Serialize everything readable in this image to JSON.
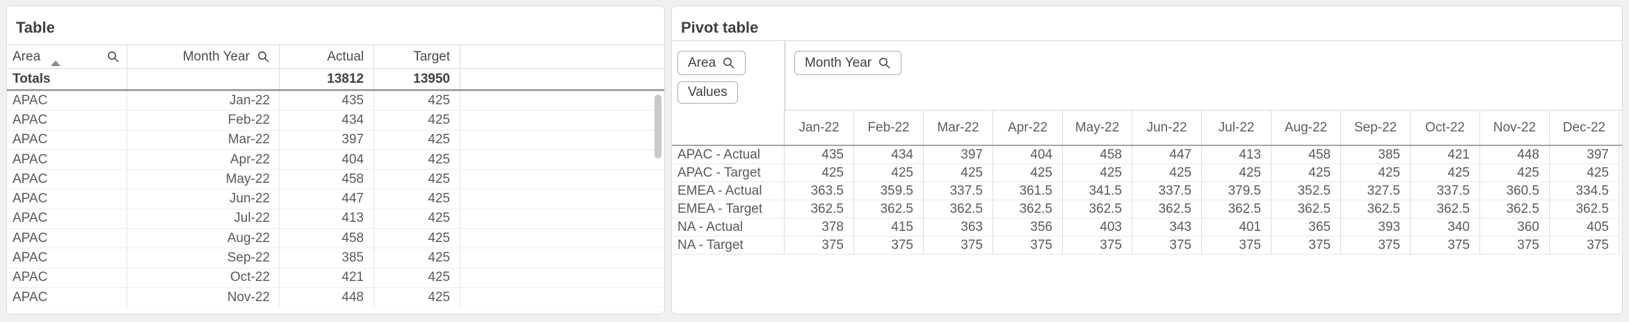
{
  "page": {
    "background": "#f0f0f0"
  },
  "left_table": {
    "title": "Table",
    "columns": [
      {
        "label": "Area",
        "sorted": "ascending",
        "searchable": true
      },
      {
        "label": "Month Year",
        "searchable": true
      },
      {
        "label": "Actual"
      },
      {
        "label": "Target"
      }
    ],
    "totals": {
      "label": "Totals",
      "actual": "13812",
      "target": "13950"
    },
    "rows": [
      {
        "area": "APAC",
        "month": "Jan-22",
        "actual": "435",
        "target": "425"
      },
      {
        "area": "APAC",
        "month": "Feb-22",
        "actual": "434",
        "target": "425"
      },
      {
        "area": "APAC",
        "month": "Mar-22",
        "actual": "397",
        "target": "425"
      },
      {
        "area": "APAC",
        "month": "Apr-22",
        "actual": "404",
        "target": "425"
      },
      {
        "area": "APAC",
        "month": "May-22",
        "actual": "458",
        "target": "425"
      },
      {
        "area": "APAC",
        "month": "Jun-22",
        "actual": "447",
        "target": "425"
      },
      {
        "area": "APAC",
        "month": "Jul-22",
        "actual": "413",
        "target": "425"
      },
      {
        "area": "APAC",
        "month": "Aug-22",
        "actual": "458",
        "target": "425"
      },
      {
        "area": "APAC",
        "month": "Sep-22",
        "actual": "385",
        "target": "425"
      },
      {
        "area": "APAC",
        "month": "Oct-22",
        "actual": "421",
        "target": "425"
      },
      {
        "area": "APAC",
        "month": "Nov-22",
        "actual": "448",
        "target": "425"
      }
    ]
  },
  "pivot_table": {
    "title": "Pivot table",
    "row_dimension_chip": "Area",
    "values_chip": "Values",
    "column_dimension_chip": "Month Year",
    "column_headers": [
      "Jan-22",
      "Feb-22",
      "Mar-22",
      "Apr-22",
      "May-22",
      "Jun-22",
      "Jul-22",
      "Aug-22",
      "Sep-22",
      "Oct-22",
      "Nov-22",
      "Dec-22"
    ],
    "rows": [
      {
        "label": "APAC - Actual",
        "values": [
          "435",
          "434",
          "397",
          "404",
          "458",
          "447",
          "413",
          "458",
          "385",
          "421",
          "448",
          "397"
        ]
      },
      {
        "label": "APAC - Target",
        "values": [
          "425",
          "425",
          "425",
          "425",
          "425",
          "425",
          "425",
          "425",
          "425",
          "425",
          "425",
          "425"
        ]
      },
      {
        "label": "EMEA - Actual",
        "values": [
          "363.5",
          "359.5",
          "337.5",
          "361.5",
          "341.5",
          "337.5",
          "379.5",
          "352.5",
          "327.5",
          "337.5",
          "360.5",
          "334.5"
        ]
      },
      {
        "label": "EMEA - Target",
        "values": [
          "362.5",
          "362.5",
          "362.5",
          "362.5",
          "362.5",
          "362.5",
          "362.5",
          "362.5",
          "362.5",
          "362.5",
          "362.5",
          "362.5"
        ]
      },
      {
        "label": "NA - Actual",
        "values": [
          "378",
          "415",
          "363",
          "356",
          "403",
          "343",
          "401",
          "365",
          "393",
          "340",
          "360",
          "405"
        ]
      },
      {
        "label": "NA - Target",
        "values": [
          "375",
          "375",
          "375",
          "375",
          "375",
          "375",
          "375",
          "375",
          "375",
          "375",
          "375",
          "375"
        ]
      }
    ]
  }
}
